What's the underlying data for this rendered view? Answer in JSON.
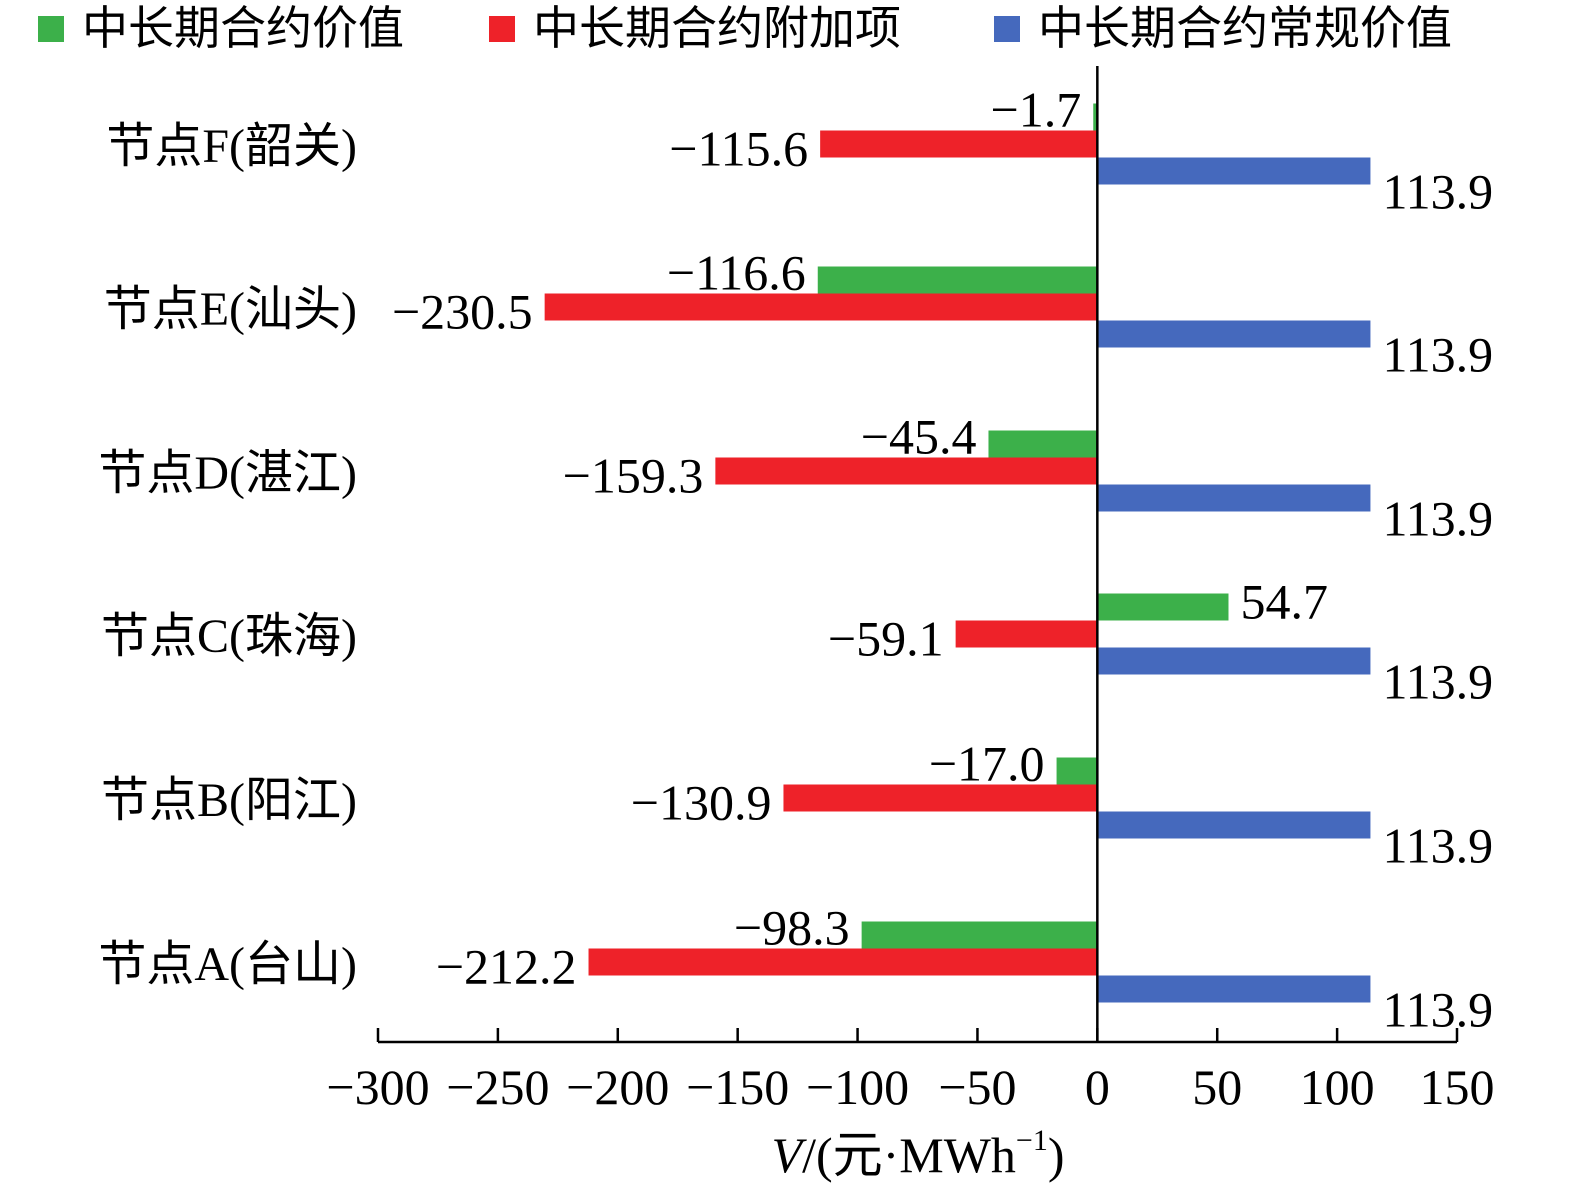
{
  "chart_data": {
    "type": "bar",
    "orientation": "horizontal",
    "categories": [
      "节点A(台山)",
      "节点B(阳江)",
      "节点C(珠海)",
      "节点D(湛江)",
      "节点E(汕头)",
      "节点F(韶关)"
    ],
    "series": [
      {
        "name": "中长期合约价值",
        "color": "#3cb04a",
        "values": [
          -98.3,
          -17.0,
          54.7,
          -45.4,
          -116.6,
          -1.7
        ]
      },
      {
        "name": "中长期合约附加项",
        "color": "#ee2229",
        "values": [
          -212.2,
          -130.9,
          -59.1,
          -159.3,
          -230.5,
          -115.6
        ]
      },
      {
        "name": "中长期合约常规价值",
        "color": "#4569bd",
        "values": [
          113.9,
          113.9,
          113.9,
          113.9,
          113.9,
          113.9
        ]
      }
    ],
    "data_labels": [
      [
        "−98.3",
        "−17.0",
        "54.7",
        "−45.4",
        "−116.6",
        "−1.7"
      ],
      [
        "−212.2",
        "−130.9",
        "−59.1",
        "−159.3",
        "−230.5",
        "−115.6"
      ],
      [
        "113.9",
        "113.9",
        "113.9",
        "113.9",
        "113.9",
        "113.9"
      ]
    ],
    "xlim": [
      -300,
      150
    ],
    "xticks": [
      -300,
      -250,
      -200,
      -150,
      -100,
      -50,
      0,
      50,
      100,
      150
    ],
    "xtick_labels": [
      "−300",
      "−250",
      "−200",
      "−150",
      "−100",
      "−50",
      "0",
      "50",
      "100",
      "150"
    ],
    "xlabel": {
      "var": "V",
      "unit": "/(元·MWh",
      "sup": "−1",
      "close": ")"
    },
    "legend": {
      "position": "top"
    },
    "grid": false
  }
}
